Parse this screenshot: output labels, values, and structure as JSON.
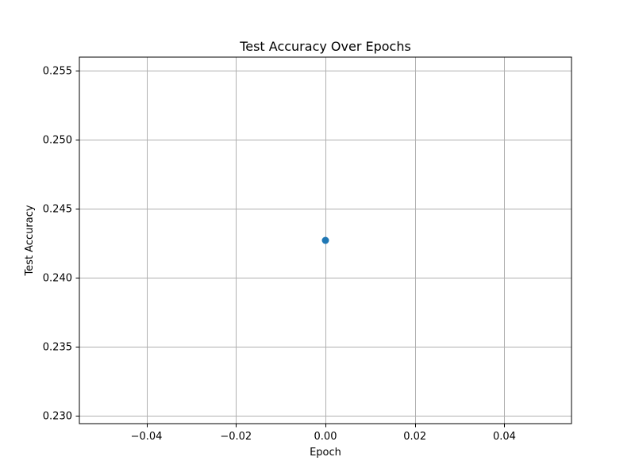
{
  "chart_data": {
    "type": "scatter",
    "title": "Test Accuracy Over Epochs",
    "xlabel": "Epoch",
    "ylabel": "Test Accuracy",
    "xlim": [
      -0.055,
      0.055
    ],
    "ylim": [
      0.22942,
      0.25598
    ],
    "xticks": [
      -0.04,
      -0.02,
      0.0,
      0.02,
      0.04
    ],
    "xtick_labels": [
      "−0.04",
      "−0.02",
      "0.00",
      "0.02",
      "0.04"
    ],
    "yticks": [
      0.23,
      0.235,
      0.24,
      0.245,
      0.25,
      0.255
    ],
    "ytick_labels": [
      "0.230",
      "0.235",
      "0.240",
      "0.245",
      "0.250",
      "0.255"
    ],
    "grid": true,
    "series": [
      {
        "x": [
          0
        ],
        "y": [
          0.2427
        ],
        "color": "#1f77b4",
        "marker": "circle"
      }
    ]
  }
}
